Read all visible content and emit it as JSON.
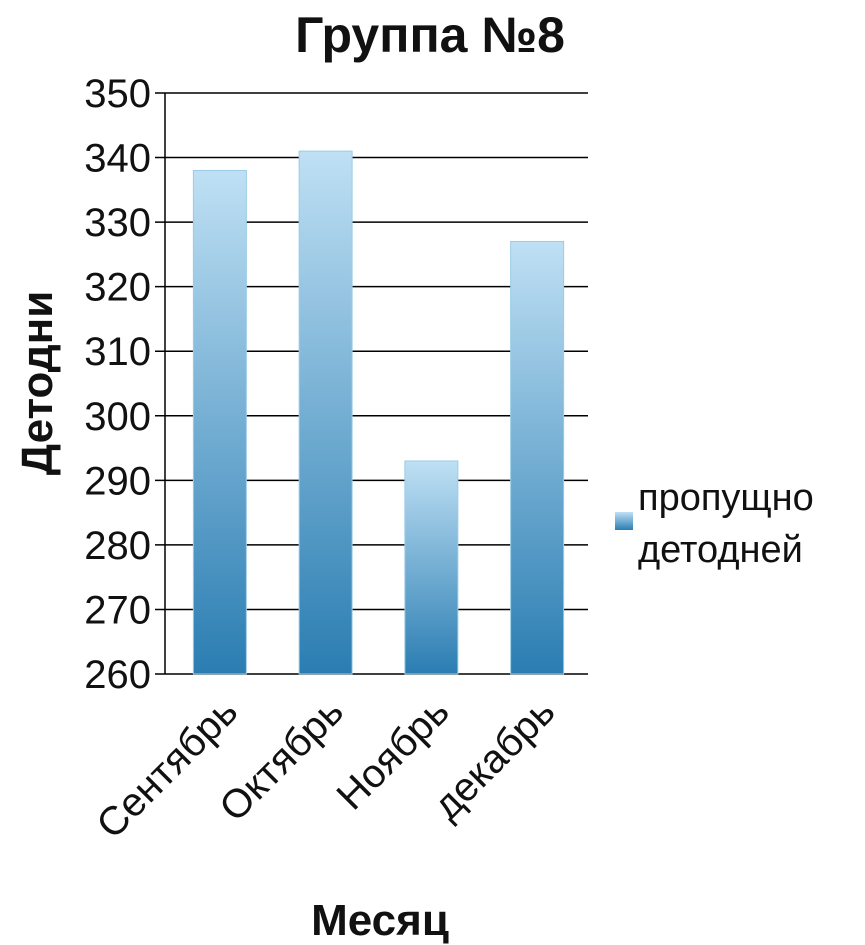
{
  "chart_data": {
    "type": "bar",
    "title": "Группа №8",
    "xlabel": "Месяц",
    "ylabel": "Детодни",
    "categories": [
      "Сентябрь",
      "Октябрь",
      "Ноябрь",
      "декабрь"
    ],
    "series": [
      {
        "name": "пропущно детодней",
        "values": [
          338,
          341,
          293,
          327
        ]
      }
    ],
    "ylim": [
      260,
      350
    ],
    "yticks": [
      "260",
      "270",
      "280",
      "290",
      "300",
      "310",
      "320",
      "330",
      "340",
      "350"
    ],
    "grid": true,
    "legend": {
      "position": "right",
      "lines": [
        "пропущно",
        "детодней"
      ]
    },
    "colors": {
      "bar_top": "#bfe0f4",
      "bar_bottom": "#2a7db2",
      "grid": "#000000"
    }
  }
}
